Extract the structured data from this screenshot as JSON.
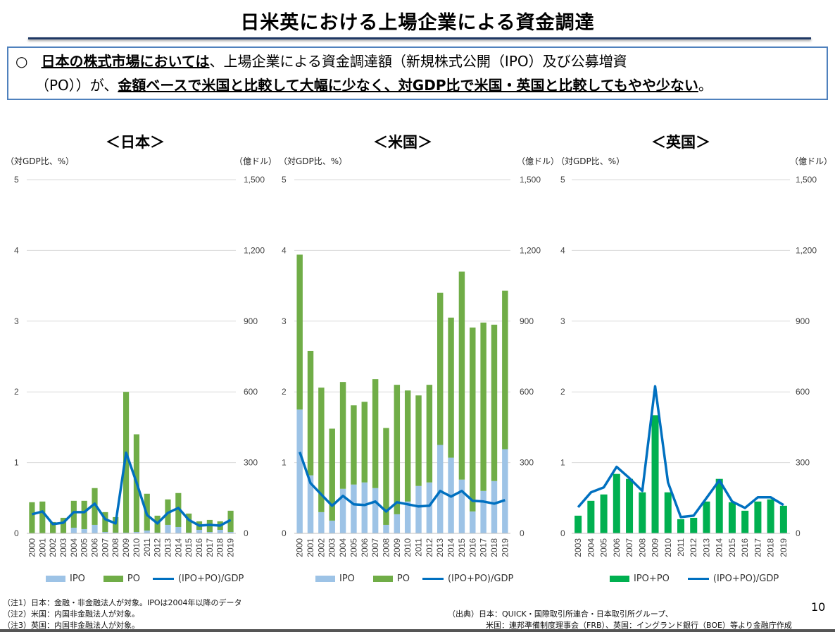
{
  "header": {
    "title": "日米英における上場企業による資金調達",
    "summary_bullet": "○",
    "summary_line1_underlined": "日本の株式市場においては",
    "summary_line1_rest": "、上場企業による資金調達額（新規株式公開（IPO）及び公募増資",
    "summary_line2_start": "（PO））が、",
    "summary_line2_underlined": "金額ベースで米国と比較して大幅に少なく、対GDP比で米国・英国と比較してもやや少ない",
    "summary_line2_end": "。"
  },
  "colors": {
    "po": "#70ad47",
    "ipo": "#9dc3e6",
    "line": "#0070c0",
    "uk_bar": "#00b050",
    "grid": "#d9d9d9"
  },
  "chart_data": [
    {
      "type": "bar+line",
      "title": "＜日本＞",
      "ylabel_left": "（対GDP比、%）",
      "ylabel_right": "（億ドル）",
      "ylim_left": [
        0,
        5
      ],
      "yticks_left": [
        "0",
        "1",
        "2",
        "3",
        "4",
        "5"
      ],
      "ylim_right": [
        0,
        1500
      ],
      "yticks_right": [
        "0",
        "300",
        "600",
        "900",
        "1,200",
        "1,500"
      ],
      "grid": true,
      "legend_placement": "bottom",
      "categories": [
        "2000",
        "2001",
        "2002",
        "2003",
        "2004",
        "2005",
        "2006",
        "2007",
        "2008",
        "2009",
        "2010",
        "2011",
        "2012",
        "2013",
        "2014",
        "2015",
        "2016",
        "2017",
        "2018",
        "2019"
      ],
      "series": [
        {
          "name": "IPO",
          "kind": "stacked-bar",
          "axis": "right",
          "values": [
            0,
            0,
            0,
            0,
            24,
            18,
            36,
            6,
            3,
            3,
            6,
            12,
            3,
            36,
            27,
            3,
            15,
            6,
            15,
            6
          ]
        },
        {
          "name": "PO",
          "kind": "stacked-bar",
          "axis": "right",
          "values": [
            132,
            135,
            48,
            66,
            114,
            120,
            156,
            84,
            66,
            597,
            414,
            156,
            72,
            108,
            144,
            81,
            36,
            51,
            36,
            90
          ]
        },
        {
          "name": "(IPO+PO)/GDP",
          "kind": "line",
          "axis": "left",
          "values": [
            0.27,
            0.31,
            0.13,
            0.15,
            0.3,
            0.3,
            0.42,
            0.2,
            0.14,
            1.14,
            0.72,
            0.26,
            0.14,
            0.29,
            0.36,
            0.19,
            0.11,
            0.12,
            0.11,
            0.19
          ]
        }
      ]
    },
    {
      "type": "bar+line",
      "title": "＜米国＞",
      "ylabel_left": "（対GDP比、%）",
      "ylabel_right": "（億ドル）",
      "ylim_left": [
        0,
        5
      ],
      "yticks_left": [
        "0",
        "1",
        "2",
        "3",
        "4",
        "5"
      ],
      "ylim_right": [
        0,
        1500
      ],
      "yticks_right": [
        "0",
        "300",
        "600",
        "900",
        "1,200",
        "1,500"
      ],
      "grid": true,
      "legend_placement": "bottom",
      "categories": [
        "2000",
        "2001",
        "2002",
        "2003",
        "2004",
        "2005",
        "2006",
        "2007",
        "2008",
        "2009",
        "2010",
        "2011",
        "2012",
        "2013",
        "2014",
        "2015",
        "2016",
        "2017",
        "2018",
        "2019"
      ],
      "series": [
        {
          "name": "IPO",
          "kind": "stacked-bar",
          "axis": "right",
          "values": [
            525,
            246,
            90,
            54,
            189,
            207,
            216,
            192,
            36,
            81,
            135,
            201,
            216,
            375,
            321,
            228,
            93,
            180,
            222,
            357
          ]
        },
        {
          "name": "PO",
          "kind": "stacked-bar",
          "axis": "right",
          "values": [
            657,
            528,
            528,
            390,
            453,
            336,
            342,
            462,
            411,
            549,
            471,
            384,
            414,
            645,
            594,
            882,
            780,
            714,
            663,
            672
          ]
        },
        {
          "name": "(IPO+PO)/GDP",
          "kind": "line",
          "axis": "left",
          "values": [
            1.15,
            0.71,
            0.55,
            0.39,
            0.53,
            0.41,
            0.4,
            0.45,
            0.31,
            0.44,
            0.41,
            0.38,
            0.39,
            0.6,
            0.52,
            0.6,
            0.46,
            0.45,
            0.42,
            0.47
          ]
        }
      ]
    },
    {
      "type": "bar+line",
      "title": "＜英国＞",
      "ylabel_left": "（対GDP比、%）",
      "ylabel_right": "（億ドル）",
      "ylim_left": [
        0,
        5
      ],
      "yticks_left": [
        "0",
        "1",
        "2",
        "3",
        "4",
        "5"
      ],
      "ylim_right": [
        0,
        1500
      ],
      "yticks_right": [
        "0",
        "300",
        "600",
        "900",
        "1,200",
        "1,500"
      ],
      "grid": true,
      "legend_placement": "bottom",
      "categories": [
        "2003",
        "2004",
        "2005",
        "2006",
        "2007",
        "2008",
        "2009",
        "2010",
        "2011",
        "2012",
        "2013",
        "2014",
        "2015",
        "2016",
        "2017",
        "2018",
        "2019"
      ],
      "series": [
        {
          "name": "IPO+PO",
          "kind": "bar",
          "axis": "right",
          "values": [
            75,
            138,
            165,
            252,
            231,
            174,
            501,
            174,
            60,
            66,
            135,
            231,
            132,
            96,
            135,
            144,
            117
          ]
        },
        {
          "name": "(IPO+PO)/GDP",
          "kind": "line",
          "axis": "left",
          "values": [
            0.37,
            0.58,
            0.65,
            0.94,
            0.78,
            0.6,
            2.08,
            0.72,
            0.23,
            0.25,
            0.5,
            0.75,
            0.45,
            0.36,
            0.51,
            0.51,
            0.4
          ]
        }
      ]
    }
  ],
  "notes": [
    "（注1）日本：金融・非金融法人が対象。IPOは2004年以降のデータ",
    "（注2）米国：内国非金融法人が対象。",
    "（注3）英国：内国非金融法人が対象。"
  ],
  "source": [
    "（出典）日本：QUICK・国際取引所連合・日本取引所グループ、",
    "米国：連邦準備制度理事会（FRB）、英国：イングランド銀行（BOE）等より金融庁作成"
  ],
  "page_number": "10"
}
